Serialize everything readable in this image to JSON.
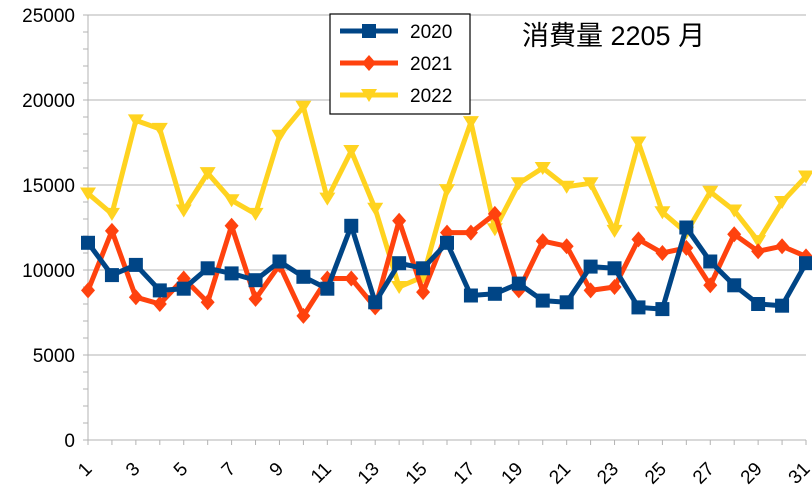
{
  "chart_data": {
    "type": "line",
    "title": "消費量 2205 月",
    "xlabel": "",
    "ylabel": "",
    "x": [
      1,
      2,
      3,
      4,
      5,
      6,
      7,
      8,
      9,
      10,
      11,
      12,
      13,
      14,
      15,
      16,
      17,
      18,
      19,
      20,
      21,
      22,
      23,
      24,
      25,
      26,
      27,
      28,
      29,
      30,
      31
    ],
    "x_tick_labels": [
      "1",
      "3",
      "5",
      "7",
      "9",
      "11",
      "13",
      "15",
      "17",
      "19",
      "21",
      "23",
      "25",
      "27",
      "29",
      "31"
    ],
    "ylim": [
      0,
      25000
    ],
    "y_ticks": [
      0,
      5000,
      10000,
      15000,
      20000,
      25000
    ],
    "grid": "horizontal",
    "legend_position": "top-center",
    "series": [
      {
        "name": "2020",
        "color": "#004586",
        "marker": "square",
        "values": [
          11600,
          9700,
          10300,
          8800,
          8900,
          10100,
          9800,
          9400,
          10500,
          9600,
          8900,
          12600,
          8100,
          10400,
          10100,
          11600,
          8500,
          8600,
          9200,
          8200,
          8100,
          10200,
          10100,
          7800,
          7700,
          12500,
          10500,
          9100,
          8000,
          7900,
          10400
        ]
      },
      {
        "name": "2021",
        "color": "#ff420e",
        "marker": "diamond",
        "values": [
          8800,
          12300,
          8400,
          8000,
          9500,
          8100,
          12600,
          8300,
          10300,
          7300,
          9500,
          9500,
          7800,
          12900,
          8700,
          12200,
          12200,
          13300,
          8800,
          11700,
          11400,
          8800,
          9000,
          11800,
          11000,
          11300,
          9100,
          12100,
          11100,
          11400,
          10800
        ]
      },
      {
        "name": "2022",
        "color": "#ffd320",
        "marker": "triangle-down",
        "values": [
          14500,
          13300,
          18800,
          18300,
          13500,
          15700,
          14100,
          13300,
          17900,
          19600,
          14200,
          17000,
          13600,
          9000,
          9600,
          14700,
          18700,
          12400,
          15100,
          16000,
          14900,
          15100,
          12300,
          17500,
          13400,
          12200,
          14600,
          13500,
          11700,
          14000,
          15500
        ]
      }
    ]
  }
}
